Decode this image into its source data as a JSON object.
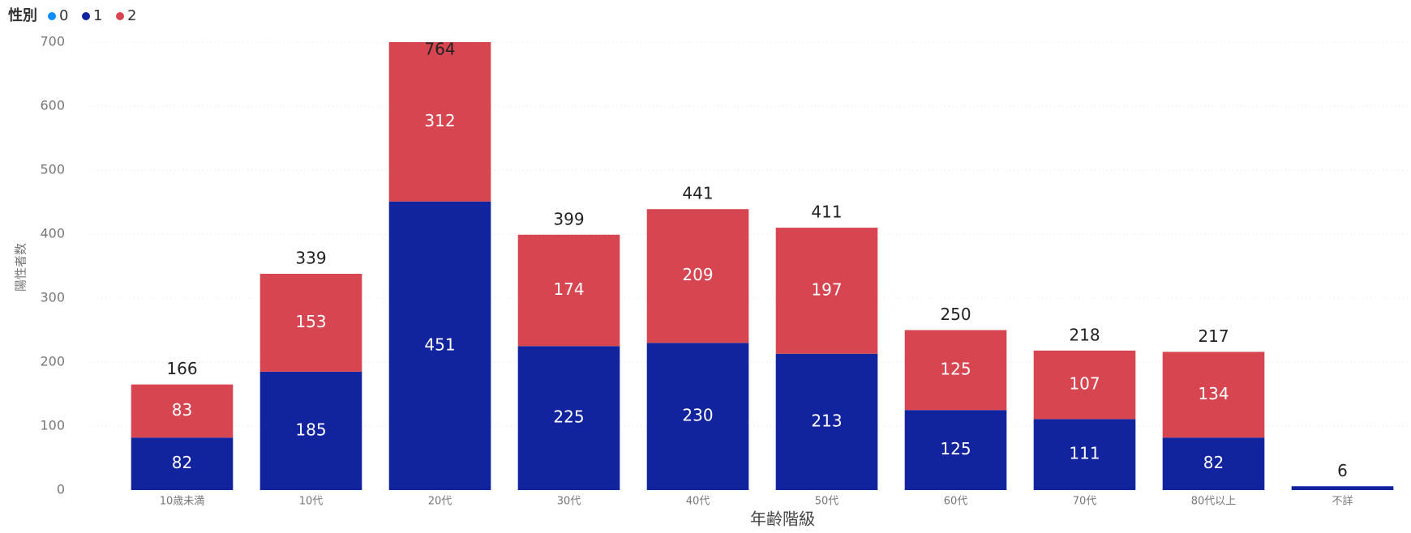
{
  "chart_data": {
    "type": "stacked_bar",
    "legend_title": "性別",
    "x_label": "年齢階級",
    "y_label": "陽性者数",
    "categories": [
      "10歳未満",
      "10代",
      "20代",
      "30代",
      "40代",
      "50代",
      "60代",
      "70代",
      "80代以上",
      "不詳"
    ],
    "series": [
      {
        "name": "0",
        "color": "#118DFF",
        "values": [
          null,
          null,
          null,
          null,
          null,
          null,
          null,
          null,
          null,
          null
        ]
      },
      {
        "name": "1",
        "color": "#12239E",
        "values": [
          82,
          185,
          451,
          225,
          230,
          213,
          125,
          111,
          82,
          6
        ]
      },
      {
        "name": "2",
        "color": "#D64550",
        "values": [
          83,
          153,
          312,
          174,
          209,
          197,
          125,
          107,
          134,
          null
        ]
      }
    ],
    "totals": [
      166,
      339,
      764,
      399,
      441,
      411,
      250,
      218,
      217,
      6
    ],
    "ylim": [
      0,
      700
    ],
    "yticks": [
      0,
      100,
      200,
      300,
      400,
      500,
      600,
      700
    ],
    "grid": true,
    "legend_position": "top-left"
  }
}
